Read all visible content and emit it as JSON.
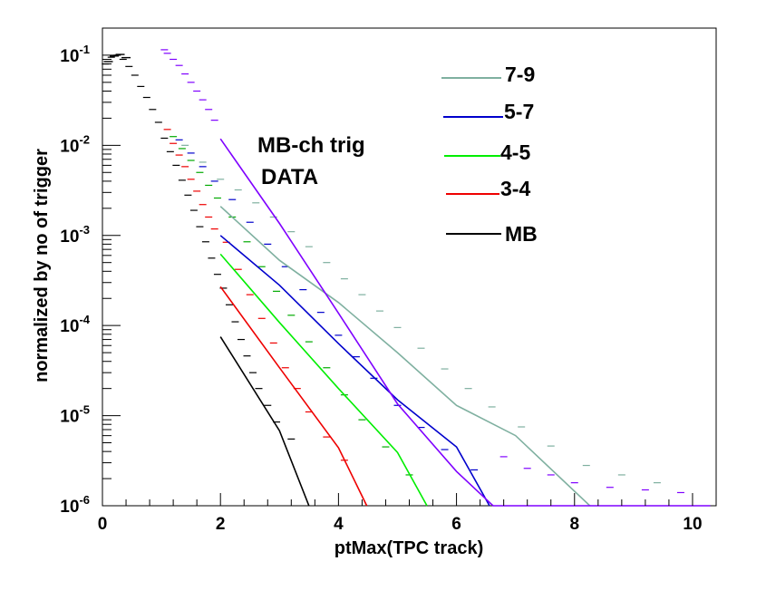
{
  "chart_data": {
    "type": "line",
    "xlabel": "ptMax(TPC track)",
    "ylabel": "normalized by no of trigger",
    "xlim": [
      0,
      10.4
    ],
    "ylim": [
      1e-06,
      0.2
    ],
    "yscale": "log",
    "x_ticks": [
      "0",
      "2",
      "4",
      "6",
      "8",
      "10"
    ],
    "y_ticks": [
      {
        "base": "10",
        "exp": "-6"
      },
      {
        "base": "10",
        "exp": "-5"
      },
      {
        "base": "10",
        "exp": "-4"
      },
      {
        "base": "10",
        "exp": "-3"
      },
      {
        "base": "10",
        "exp": "-2"
      },
      {
        "base": "10",
        "exp": "-1"
      }
    ],
    "annotations": [
      "MB-ch trig",
      "DATA"
    ],
    "legend_position": "top-right",
    "series": [
      {
        "name": "7-9",
        "color": "#7fb0a0",
        "points": [
          [
            2.0,
            0.0021
          ],
          [
            3.0,
            0.00053
          ],
          [
            4.0,
            0.00018
          ],
          [
            5.0,
            5e-05
          ],
          [
            6.0,
            1.3e-05
          ],
          [
            7.0,
            6e-06
          ],
          [
            8.26,
            1e-06
          ]
        ]
      },
      {
        "name": "5-7",
        "color": "#0000cc",
        "points": [
          [
            2.0,
            0.001
          ],
          [
            3.0,
            0.00028
          ],
          [
            4.0,
            6.3e-05
          ],
          [
            5.0,
            1.5e-05
          ],
          [
            6.0,
            4.5e-06
          ],
          [
            6.56,
            1e-06
          ]
        ]
      },
      {
        "name": "4-5",
        "color": "#00ee00",
        "points": [
          [
            2.0,
            0.00062
          ],
          [
            3.0,
            0.000108
          ],
          [
            4.0,
            2e-05
          ],
          [
            5.0,
            3.9e-06
          ],
          [
            5.5,
            1e-06
          ]
        ]
      },
      {
        "name": "3-4",
        "color": "#ee0000",
        "points": [
          [
            2.0,
            0.00027
          ],
          [
            3.0,
            3.4e-05
          ],
          [
            4.0,
            4.4e-06
          ],
          [
            4.48,
            1e-06
          ]
        ]
      },
      {
        "name": "MB",
        "color": "#000000",
        "points": [
          [
            2.0,
            7.5e-05
          ],
          [
            3.0,
            6.8e-06
          ],
          [
            3.5,
            1e-06
          ]
        ]
      },
      {
        "name": "",
        "color": "#7f00ff",
        "points": [
          [
            2.0,
            0.0118
          ],
          [
            3.0,
            0.00136
          ],
          [
            4.0,
            0.000137
          ],
          [
            5.0,
            1.35e-05
          ],
          [
            6.0,
            2.4e-06
          ],
          [
            6.62,
            1e-06
          ],
          [
            10.3,
            1e-06
          ]
        ]
      }
    ],
    "scatter_series": [
      {
        "color": "#000000",
        "points": [
          [
            0.05,
            0.08
          ],
          [
            0.15,
            0.095
          ],
          [
            0.25,
            0.1
          ],
          [
            0.35,
            0.09
          ],
          [
            0.45,
            0.075
          ],
          [
            0.55,
            0.06
          ],
          [
            0.65,
            0.045
          ],
          [
            0.75,
            0.034
          ],
          [
            0.85,
            0.025
          ],
          [
            0.95,
            0.018
          ],
          [
            1.05,
            0.012
          ],
          [
            1.15,
            0.0085
          ],
          [
            1.25,
            0.006
          ],
          [
            1.35,
            0.0041
          ],
          [
            1.45,
            0.0028
          ],
          [
            1.55,
            0.0019
          ],
          [
            1.65,
            0.00125
          ],
          [
            1.75,
            0.00085
          ],
          [
            1.85,
            0.00056
          ],
          [
            1.95,
            0.00037
          ],
          [
            2.05,
            0.00026
          ],
          [
            2.15,
            0.00017
          ],
          [
            2.25,
            0.00011
          ],
          [
            2.35,
            7e-05
          ],
          [
            2.45,
            4.6e-05
          ],
          [
            2.55,
            3e-05
          ],
          [
            2.65,
            2e-05
          ],
          [
            2.8,
            1.3e-05
          ],
          [
            2.95,
            8.5e-06
          ],
          [
            3.2,
            5.5e-06
          ]
        ]
      },
      {
        "color": "#ee0000",
        "points": [
          [
            1.1,
            0.015
          ],
          [
            1.2,
            0.0105
          ],
          [
            1.3,
            0.0078
          ],
          [
            1.4,
            0.0058
          ],
          [
            1.5,
            0.0042
          ],
          [
            1.6,
            0.0031
          ],
          [
            1.7,
            0.0022
          ],
          [
            1.8,
            0.0016
          ],
          [
            1.9,
            0.00118
          ],
          [
            2.1,
            0.00084
          ],
          [
            2.3,
            0.00042
          ],
          [
            2.5,
            0.00022
          ],
          [
            2.7,
            0.00012
          ],
          [
            2.9,
            6.4e-05
          ],
          [
            3.1,
            3.4e-05
          ],
          [
            3.3,
            2e-05
          ],
          [
            3.5,
            1.1e-05
          ],
          [
            3.8,
            5.8e-06
          ],
          [
            4.1,
            3.2e-06
          ]
        ]
      },
      {
        "color": "#00aa00",
        "points": [
          [
            1.2,
            0.0125
          ],
          [
            1.35,
            0.0092
          ],
          [
            1.5,
            0.0068
          ],
          [
            1.65,
            0.005
          ],
          [
            1.8,
            0.0036
          ],
          [
            1.95,
            0.0026
          ],
          [
            2.2,
            0.0016
          ],
          [
            2.45,
            0.00085
          ],
          [
            2.7,
            0.00045
          ],
          [
            2.95,
            0.00024
          ],
          [
            3.2,
            0.00013
          ],
          [
            3.5,
            6.6e-05
          ],
          [
            3.8,
            3.4e-05
          ],
          [
            4.1,
            1.7e-05
          ],
          [
            4.4,
            9e-06
          ],
          [
            4.8,
            4.5e-06
          ],
          [
            5.2,
            2.2e-06
          ]
        ]
      },
      {
        "color": "#0000cc",
        "points": [
          [
            1.3,
            0.0115
          ],
          [
            1.5,
            0.0082
          ],
          [
            1.7,
            0.0058
          ],
          [
            1.9,
            0.004
          ],
          [
            2.2,
            0.0025
          ],
          [
            2.5,
            0.0014
          ],
          [
            2.8,
            0.0008
          ],
          [
            3.1,
            0.00045
          ],
          [
            3.4,
            0.00025
          ],
          [
            3.7,
            0.00014
          ],
          [
            4.0,
            7.8e-05
          ],
          [
            4.3,
            4.5e-05
          ],
          [
            4.6,
            2.6e-05
          ],
          [
            5.0,
            1.3e-05
          ],
          [
            5.4,
            7.4e-06
          ],
          [
            5.8,
            4.2e-06
          ],
          [
            6.3,
            2.5e-06
          ]
        ]
      },
      {
        "color": "#7fb0a0",
        "points": [
          [
            1.4,
            0.01
          ],
          [
            1.7,
            0.0065
          ],
          [
            2.0,
            0.0042
          ],
          [
            2.3,
            0.0032
          ],
          [
            2.6,
            0.0023
          ],
          [
            2.9,
            0.0016
          ],
          [
            3.2,
            0.0011
          ],
          [
            3.5,
            0.00075
          ],
          [
            3.8,
            0.0005
          ],
          [
            4.1,
            0.00033
          ],
          [
            4.4,
            0.00022
          ],
          [
            4.7,
            0.000145
          ],
          [
            5.0,
            9.5e-05
          ],
          [
            5.4,
            5.6e-05
          ],
          [
            5.8,
            3.3e-05
          ],
          [
            6.2,
            2e-05
          ],
          [
            6.6,
            1.25e-05
          ],
          [
            7.1,
            7.5e-06
          ],
          [
            7.6,
            4.6e-06
          ],
          [
            8.2,
            2.8e-06
          ],
          [
            8.8,
            2.2e-06
          ],
          [
            9.4,
            1.8e-06
          ]
        ]
      },
      {
        "color": "#7f00ff",
        "points": [
          [
            1.05,
            0.115
          ],
          [
            1.1,
            0.105
          ],
          [
            1.2,
            0.09
          ],
          [
            1.3,
            0.077
          ],
          [
            1.4,
            0.062
          ],
          [
            1.5,
            0.05
          ],
          [
            1.6,
            0.04
          ],
          [
            1.7,
            0.032
          ],
          [
            1.8,
            0.025
          ],
          [
            1.9,
            0.019
          ],
          [
            6.8,
            3.5e-06
          ],
          [
            7.2,
            2.6e-06
          ],
          [
            7.6,
            2.2e-06
          ],
          [
            8.0,
            1.8e-06
          ],
          [
            8.6,
            1.6e-06
          ],
          [
            9.2,
            1.5e-06
          ],
          [
            9.8,
            1.4e-06
          ]
        ]
      }
    ],
    "peak_cluster": {
      "color": "#000000",
      "points": [
        [
          0.1,
          0.085
        ],
        [
          0.2,
          0.098
        ],
        [
          0.3,
          0.102
        ],
        [
          0.4,
          0.094
        ]
      ]
    }
  }
}
